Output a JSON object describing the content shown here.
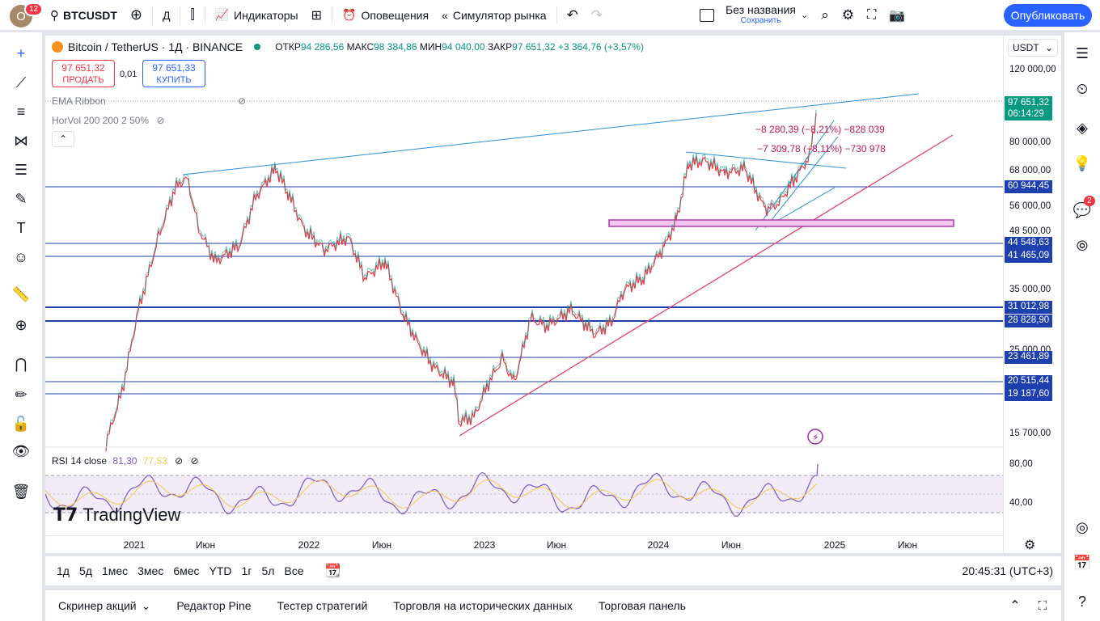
{
  "topbar": {
    "avatar_letter": "O",
    "avatar_badge": "12",
    "symbol": "BTCUSDT",
    "interval": "Д",
    "indicators": "Индикаторы",
    "alerts": "Оповещения",
    "replay": "Симулятор рынка",
    "layout_name": "Без названия",
    "layout_save": "Сохранить",
    "publish": "Опубликовать"
  },
  "legend": {
    "title": "Bitcoin / TetherUS · 1Д · BINANCE",
    "open_label": "ОТКР",
    "open": "94 286,56",
    "high_label": "МАКС",
    "high": "98 384,86",
    "low_label": "МИН",
    "low": "94 040,00",
    "close_label": "ЗАКР",
    "close": "97 651,32",
    "change": "+3 364,76 (+3,57%)"
  },
  "trade": {
    "sell_price": "97 651,32",
    "sell_label": "ПРОДАТЬ",
    "spread": "0,01",
    "buy_price": "97 651,33",
    "buy_label": "КУПИТЬ"
  },
  "indicators": {
    "ema": "EMA Ribbon",
    "horvol": "HorVol 200 200 2 50%",
    "rsi_label": "RSI 14 close",
    "rsi_value": "81,30",
    "rsi_ma": "77,53"
  },
  "currency": "USDT",
  "price_axis": {
    "labels": [
      "120 000,00",
      "80 000,00",
      "68 000,00",
      "56 000,00",
      "48 500,00",
      "35 000,00",
      "25 000,00",
      "15 700,00"
    ],
    "current_price": "97 651,32",
    "countdown": "06:14:29",
    "tags": [
      "60 944,45",
      "44 548,63",
      "41 465,09",
      "31 012,98",
      "28 828,90",
      "23 461,89",
      "20 515,44",
      "19 187,60"
    ],
    "rsi_labels": [
      "80,00",
      "40,00"
    ]
  },
  "annotations": {
    "measure1": "−8 280,39 (−8,21%) −828 039",
    "measure2": "−7 309,78 (−8,11%) −730 978"
  },
  "time_axis": [
    "2021",
    "Июн",
    "2022",
    "Июн",
    "2023",
    "Июн",
    "2024",
    "Июн",
    "2025",
    "Июн"
  ],
  "watermark": "TradingView",
  "ranges": [
    "1д",
    "5д",
    "1мес",
    "3мес",
    "6мес",
    "YTD",
    "1г",
    "5л",
    "Все"
  ],
  "clock": "20:45:31 (UTC+3)",
  "bottom_tabs": [
    "Скринер акций",
    "Редактор Pine",
    "Тестер стратегий",
    "Торговля на исторических данных",
    "Торговая панель"
  ],
  "right_badge": "2",
  "colors": {
    "up": "#089981",
    "down": "#f23645",
    "accent": "#2962ff",
    "trendline": "#2a8fd8",
    "support": "#1e3fae",
    "rsi": "#7e57c2"
  }
}
